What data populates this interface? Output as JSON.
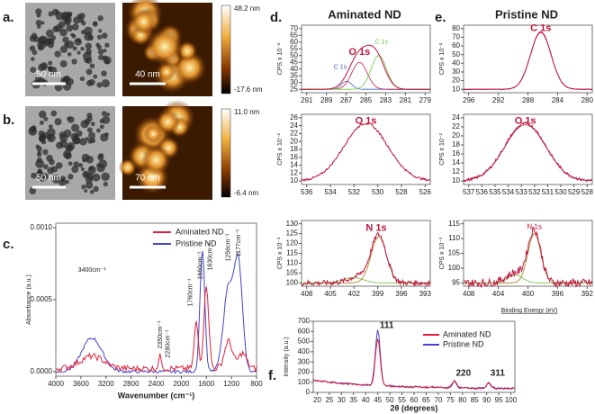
{
  "panels": {
    "a": {
      "label": "a.",
      "scale_tem": "50 nm",
      "scale_afm": "40 nm",
      "colorbar": [
        "48.2 nm",
        "-17.6 nm"
      ]
    },
    "b": {
      "label": "b.",
      "scale_tem": "50 nm",
      "scale_afm": "70 nm",
      "colorbar": [
        "11.0 nm",
        "-6.4 nm"
      ]
    },
    "c": {
      "label": "c.",
      "legend": [
        "Aminated ND",
        "Pristine ND"
      ],
      "y_label": "Absorbance (a.u.)",
      "x_label": "Wavenumber (cm⁻¹)",
      "xticks": [
        "4000",
        "3600",
        "3200",
        "2800",
        "2400",
        "2000",
        "1600",
        "1200",
        "800"
      ],
      "yticks": [
        "0.0000",
        "0.0005",
        "0.0010"
      ],
      "annotations": [
        "3400cm⁻¹",
        "2350cm⁻¹",
        "2280cm⁻¹",
        "1760cm⁻¹",
        "1660cm⁻¹",
        "1630cm⁻¹",
        "1256cm⁻¹",
        "1177cm⁻¹"
      ]
    },
    "d": {
      "label": "d.",
      "title": "Aminated ND",
      "c1s": {
        "y_label": "CPS x 10⁻²",
        "peaks": [
          "C 1s",
          "O 1s",
          "C 1s"
        ],
        "xticks": [
          "291",
          "289",
          "287",
          "285",
          "283",
          "281",
          "279"
        ],
        "yticks": [
          "25",
          "30",
          "35",
          "40",
          "45",
          "50",
          "55",
          "60",
          "65",
          "70"
        ]
      },
      "o1s": {
        "y_label": "CPS x 10⁻²",
        "peaks": [
          "O 1s"
        ],
        "xticks": [
          "536",
          "534",
          "532",
          "530",
          "528",
          "526"
        ],
        "yticks": [
          "10",
          "12",
          "14",
          "16",
          "18",
          "20",
          "22",
          "24",
          "26"
        ]
      },
      "n1s": {
        "y_label": "CPS x 10⁻¹",
        "peaks": [
          "N 1s"
        ],
        "xticks": [
          "408",
          "405",
          "402",
          "399",
          "396",
          "393"
        ],
        "yticks": [
          "100",
          "105",
          "110",
          "115",
          "120",
          "125",
          "130"
        ]
      }
    },
    "e": {
      "label": "e.",
      "title": "Pristine ND",
      "x_label": "Binding Energy (eV)",
      "c1s": {
        "y_label": "CPS x 10⁻²",
        "peaks": [
          "C 1s"
        ],
        "xticks": [
          "296",
          "292",
          "288",
          "284",
          "280"
        ],
        "yticks": [
          "10",
          "20",
          "30",
          "40",
          "50",
          "60",
          "70",
          "80"
        ]
      },
      "o1s": {
        "y_label": "CPS x 10⁻²",
        "peaks": [
          "O 1s"
        ],
        "xticks": [
          "537",
          "536",
          "535",
          "534",
          "533",
          "532",
          "531",
          "530",
          "529",
          "528"
        ],
        "yticks": [
          "10",
          "12",
          "14",
          "16",
          "18",
          "20",
          "22",
          "24"
        ]
      },
      "n1s": {
        "y_label": "CPS x 10⁻¹",
        "peaks": [
          "N 1s"
        ],
        "xticks": [
          "408",
          "404",
          "400",
          "396",
          "392"
        ],
        "yticks": [
          "95",
          "100",
          "105",
          "110",
          "115"
        ]
      }
    },
    "f": {
      "label": "f.",
      "legend": [
        "Aminated ND",
        "Pristine ND"
      ],
      "y_label": "Intensity (a.u.)",
      "x_label": "2θ (degrees)",
      "xticks": [
        "20",
        "25",
        "30",
        "35",
        "40",
        "45",
        "50",
        "55",
        "60",
        "65",
        "70",
        "75",
        "80",
        "85",
        "90",
        "95",
        "100"
      ],
      "yticks": [
        "0",
        "100",
        "200",
        "300",
        "400",
        "500",
        "600",
        "700"
      ],
      "peaks": [
        "111",
        "220",
        "311"
      ]
    }
  }
}
